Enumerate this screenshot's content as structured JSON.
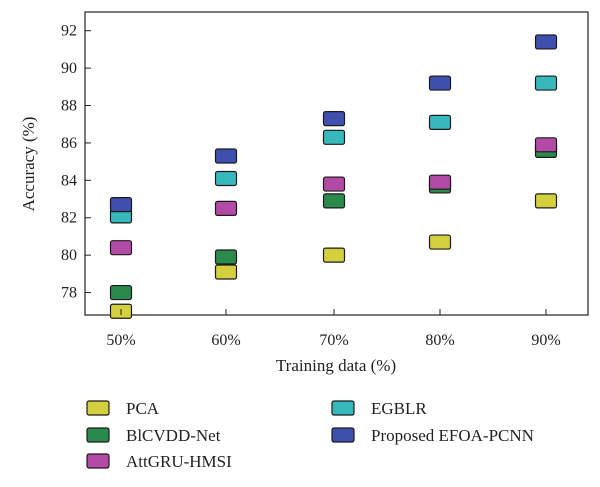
{
  "chart_data": {
    "type": "scatter",
    "title": "",
    "xlabel": "Training data (%)",
    "ylabel": "Accuracy (%)",
    "categories": [
      "50%",
      "60%",
      "70%",
      "80%",
      "90%"
    ],
    "ylim": [
      76.8,
      93
    ],
    "yticks": [
      78,
      80,
      82,
      84,
      86,
      88,
      90,
      92
    ],
    "grid": false,
    "legend_position": "bottom",
    "series": [
      {
        "name": "PCA",
        "color": "#d4cf3c",
        "values": [
          77.0,
          79.1,
          80.0,
          80.7,
          82.9
        ]
      },
      {
        "name": "BlCVDD-Net",
        "color": "#2a8a4c",
        "values": [
          78.0,
          79.9,
          82.9,
          83.7,
          85.6
        ]
      },
      {
        "name": "AttGRU-HMSI",
        "color": "#b24aa6",
        "values": [
          80.4,
          82.5,
          83.8,
          83.9,
          85.9
        ]
      },
      {
        "name": "EGBLR",
        "color": "#37b8bc",
        "values": [
          82.1,
          84.1,
          86.3,
          87.1,
          89.2
        ]
      },
      {
        "name": "Proposed EFOA-PCNN",
        "color": "#3f4fae",
        "values": [
          82.7,
          85.3,
          87.3,
          89.2,
          91.4
        ]
      }
    ]
  }
}
